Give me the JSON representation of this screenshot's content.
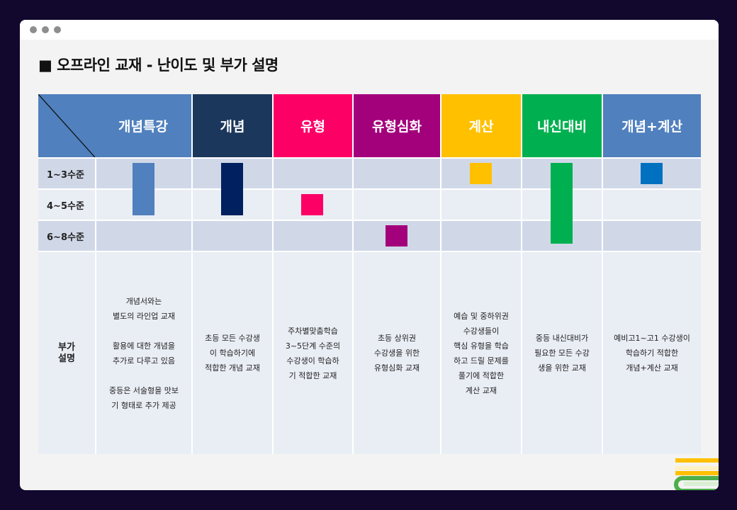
{
  "window": {
    "dots": [
      "dot",
      "dot",
      "dot"
    ]
  },
  "page_title": "■ 오프라인 교재 - 난이도 및 부가 설명",
  "columns": [
    {
      "label": "개념특강",
      "color": "#5080be"
    },
    {
      "label": "개념",
      "color": "#1b375c"
    },
    {
      "label": "유형",
      "color": "#fd0066"
    },
    {
      "label": "유형심화",
      "color": "#a3007c"
    },
    {
      "label": "계산",
      "color": "#ffc000"
    },
    {
      "label": "내신대비",
      "color": "#00b050"
    },
    {
      "label": "개념+계산",
      "color": "#5080be"
    }
  ],
  "levels": [
    "1~3수준",
    "4~5수준",
    "6~8수준"
  ],
  "level_bars": [
    {
      "column": "개념특강",
      "levels": [
        "1~3수준",
        "4~5수준"
      ],
      "color": "#5080be"
    },
    {
      "column": "개념",
      "levels": [
        "1~3수준",
        "4~5수준"
      ],
      "color": "#002060"
    },
    {
      "column": "유형",
      "levels": [
        "4~5수준"
      ],
      "color": "#fd0066"
    },
    {
      "column": "유형심화",
      "levels": [
        "6~8수준"
      ],
      "color": "#a3007c"
    },
    {
      "column": "계산",
      "levels": [
        "1~3수준"
      ],
      "color": "#ffc000"
    },
    {
      "column": "내신대비",
      "levels": [
        "1~3수준",
        "4~5수준",
        "6~8수준"
      ],
      "color": "#00b050"
    },
    {
      "column": "개념+계산",
      "levels": [
        "1~3수준"
      ],
      "color": "#0070c0"
    }
  ],
  "description_label": "부가\n설명",
  "descriptions": [
    "개념서와는\n별도의 라인업 교재\n\n활용에 대한 개념을\n추가로 다루고 있음\n\n중등은 서술형을 맛보\n기 형태로 추가 제공",
    "초등 모든 수강생\n이 학습하기에\n적합한 개념 교재",
    "주차별맞춤학습\n3~5단계 수준의\n수강생이 학습하\n기 적합한 교재",
    "초등 상위권\n수강생을 위한\n유형심화 교재",
    "예습 및 중하위권\n수강생들이\n핵심 유형을 학습\n하고 드릴 문제를\n풀기에 적합한\n계산 교재",
    "중등 내신대비가\n필요한 모든 수강\n생을 위한 교재",
    "예비고1~고1 수강생이\n학습하기 적합한\n개념+계산 교재"
  ]
}
